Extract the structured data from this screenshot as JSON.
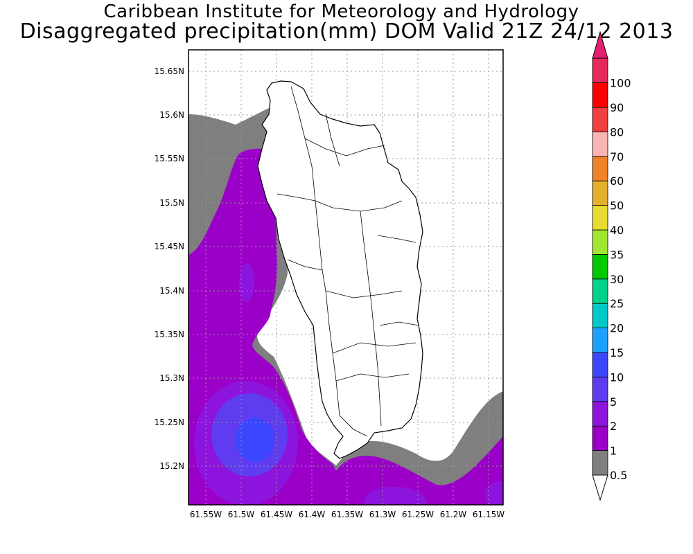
{
  "header": {
    "title_line1": "Caribbean Institute for Meteorology and Hydrology",
    "title_line2": "Disaggregated precipitation(mm) DOM Valid 21Z 24/12 2013"
  },
  "axes": {
    "lat_labels": [
      "15.65N",
      "15.6N",
      "15.55N",
      "15.5N",
      "15.45N",
      "15.4N",
      "15.35N",
      "15.3N",
      "15.25N",
      "15.2N"
    ],
    "lon_labels": [
      "61.55W",
      "61.5W",
      "61.45W",
      "61.4W",
      "61.35W",
      "61.3W",
      "61.25W",
      "61.2W",
      "61.15W"
    ]
  },
  "colorbar": {
    "levels": [
      "0.5",
      "1",
      "2",
      "5",
      "10",
      "15",
      "20",
      "25",
      "30",
      "35",
      "40",
      "50",
      "60",
      "70",
      "80",
      "90",
      "100"
    ],
    "colors": [
      "#7f7f7f",
      "#9b00c8",
      "#8c14dc",
      "#5f3cf0",
      "#3c46ff",
      "#1ea0ff",
      "#00c8c8",
      "#00d28c",
      "#00c800",
      "#a0e632",
      "#e6dc32",
      "#e6af2d",
      "#f08228",
      "#fab4b4",
      "#f04040",
      "#ff0000",
      "#e6285a"
    ],
    "under_color": "#ffffff",
    "over_color": "#e61e6e"
  },
  "map": {
    "land_color": "#ffffff",
    "background_fill": "#7f7f7f",
    "gridlines": true,
    "region": "Dominica"
  }
}
